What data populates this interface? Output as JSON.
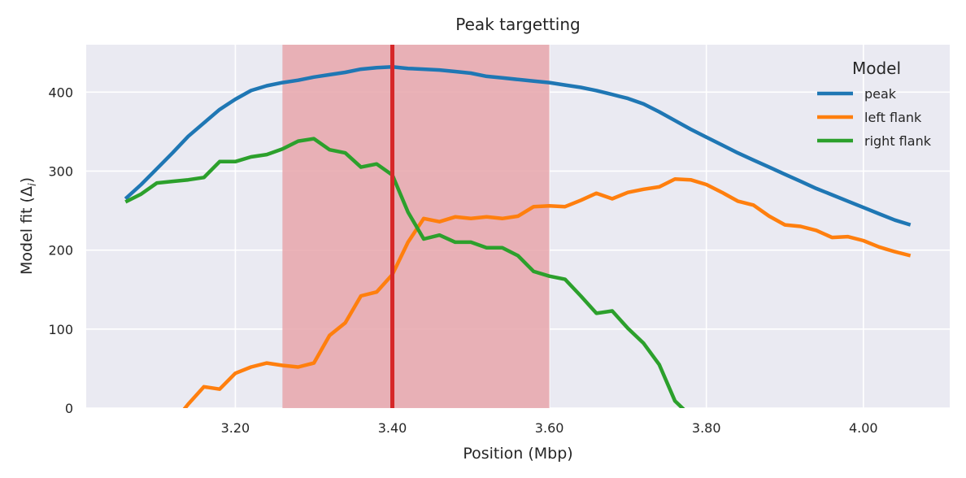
{
  "chart_data": {
    "type": "line",
    "title": "Peak targetting",
    "xlabel": "Position (Mbp)",
    "ylabel": "Model fit (Δ",
    "ylabel_sub": "i",
    "ylabel_close": ")",
    "xlim": [
      3.01,
      4.11
    ],
    "ylim": [
      0,
      460
    ],
    "x_ticks": [
      3.2,
      3.4,
      3.6,
      3.8,
      4.0
    ],
    "x_tick_labels": [
      "3.20",
      "3.40",
      "3.60",
      "3.80",
      "4.00"
    ],
    "y_ticks": [
      0,
      100,
      200,
      300,
      400
    ],
    "y_tick_labels": [
      "0",
      "100",
      "200",
      "300",
      "400"
    ],
    "grid": true,
    "legend": {
      "title": "Model",
      "placement": "top-right"
    },
    "highlight_band": {
      "x0": 3.26,
      "x1": 3.6,
      "color": "#e8a6ab"
    },
    "vline": {
      "x": 3.4,
      "color": "#d62728"
    },
    "colors": {
      "background": "#eaeaf2",
      "grid": "#ffffff"
    },
    "series": [
      {
        "name": "peak",
        "color": "#1f77b4",
        "points": [
          [
            3.06,
            265
          ],
          [
            3.08,
            283
          ],
          [
            3.1,
            303
          ],
          [
            3.12,
            323
          ],
          [
            3.14,
            344
          ],
          [
            3.16,
            361
          ],
          [
            3.18,
            378
          ],
          [
            3.2,
            391
          ],
          [
            3.22,
            402
          ],
          [
            3.24,
            408
          ],
          [
            3.26,
            412
          ],
          [
            3.28,
            415
          ],
          [
            3.3,
            419
          ],
          [
            3.32,
            422
          ],
          [
            3.34,
            425
          ],
          [
            3.36,
            429
          ],
          [
            3.38,
            431
          ],
          [
            3.4,
            432
          ],
          [
            3.42,
            430
          ],
          [
            3.44,
            429
          ],
          [
            3.46,
            428
          ],
          [
            3.48,
            426
          ],
          [
            3.5,
            424
          ],
          [
            3.52,
            420
          ],
          [
            3.54,
            418
          ],
          [
            3.56,
            416
          ],
          [
            3.58,
            414
          ],
          [
            3.6,
            412
          ],
          [
            3.62,
            409
          ],
          [
            3.64,
            406
          ],
          [
            3.66,
            402
          ],
          [
            3.68,
            397
          ],
          [
            3.7,
            392
          ],
          [
            3.72,
            385
          ],
          [
            3.74,
            375
          ],
          [
            3.76,
            364
          ],
          [
            3.78,
            353
          ],
          [
            3.8,
            343
          ],
          [
            3.82,
            333
          ],
          [
            3.84,
            323
          ],
          [
            3.86,
            314
          ],
          [
            3.88,
            305
          ],
          [
            3.9,
            296
          ],
          [
            3.92,
            287
          ],
          [
            3.94,
            278
          ],
          [
            3.96,
            270
          ],
          [
            3.98,
            262
          ],
          [
            4.0,
            254
          ],
          [
            4.02,
            246
          ],
          [
            4.04,
            238
          ],
          [
            4.06,
            232
          ]
        ]
      },
      {
        "name": "left flank",
        "color": "#ff7f0e",
        "points": [
          [
            3.12,
            -20
          ],
          [
            3.14,
            5
          ],
          [
            3.16,
            27
          ],
          [
            3.18,
            24
          ],
          [
            3.2,
            44
          ],
          [
            3.22,
            52
          ],
          [
            3.24,
            57
          ],
          [
            3.26,
            54
          ],
          [
            3.28,
            52
          ],
          [
            3.3,
            57
          ],
          [
            3.32,
            92
          ],
          [
            3.34,
            108
          ],
          [
            3.36,
            142
          ],
          [
            3.38,
            147
          ],
          [
            3.4,
            169
          ],
          [
            3.42,
            210
          ],
          [
            3.44,
            240
          ],
          [
            3.46,
            236
          ],
          [
            3.48,
            242
          ],
          [
            3.5,
            240
          ],
          [
            3.52,
            242
          ],
          [
            3.54,
            240
          ],
          [
            3.56,
            243
          ],
          [
            3.58,
            255
          ],
          [
            3.6,
            256
          ],
          [
            3.62,
            255
          ],
          [
            3.64,
            263
          ],
          [
            3.66,
            272
          ],
          [
            3.68,
            265
          ],
          [
            3.7,
            273
          ],
          [
            3.72,
            277
          ],
          [
            3.74,
            280
          ],
          [
            3.76,
            290
          ],
          [
            3.78,
            289
          ],
          [
            3.8,
            283
          ],
          [
            3.82,
            273
          ],
          [
            3.84,
            262
          ],
          [
            3.86,
            257
          ],
          [
            3.88,
            243
          ],
          [
            3.9,
            232
          ],
          [
            3.92,
            230
          ],
          [
            3.94,
            225
          ],
          [
            3.96,
            216
          ],
          [
            3.98,
            217
          ],
          [
            4.0,
            212
          ],
          [
            4.02,
            204
          ],
          [
            4.04,
            198
          ],
          [
            4.06,
            193
          ]
        ]
      },
      {
        "name": "right flank",
        "color": "#2ca02c",
        "points": [
          [
            3.06,
            261
          ],
          [
            3.08,
            271
          ],
          [
            3.1,
            285
          ],
          [
            3.12,
            287
          ],
          [
            3.14,
            289
          ],
          [
            3.16,
            292
          ],
          [
            3.18,
            312
          ],
          [
            3.2,
            312
          ],
          [
            3.22,
            318
          ],
          [
            3.24,
            321
          ],
          [
            3.26,
            328
          ],
          [
            3.28,
            338
          ],
          [
            3.3,
            341
          ],
          [
            3.32,
            327
          ],
          [
            3.34,
            323
          ],
          [
            3.36,
            305
          ],
          [
            3.38,
            309
          ],
          [
            3.4,
            295
          ],
          [
            3.42,
            248
          ],
          [
            3.44,
            214
          ],
          [
            3.46,
            219
          ],
          [
            3.48,
            210
          ],
          [
            3.5,
            210
          ],
          [
            3.52,
            203
          ],
          [
            3.54,
            203
          ],
          [
            3.56,
            193
          ],
          [
            3.58,
            173
          ],
          [
            3.6,
            167
          ],
          [
            3.62,
            163
          ],
          [
            3.64,
            142
          ],
          [
            3.66,
            120
          ],
          [
            3.68,
            123
          ],
          [
            3.7,
            101
          ],
          [
            3.72,
            82
          ],
          [
            3.74,
            55
          ],
          [
            3.76,
            9
          ],
          [
            3.78,
            -10
          ]
        ]
      }
    ]
  }
}
